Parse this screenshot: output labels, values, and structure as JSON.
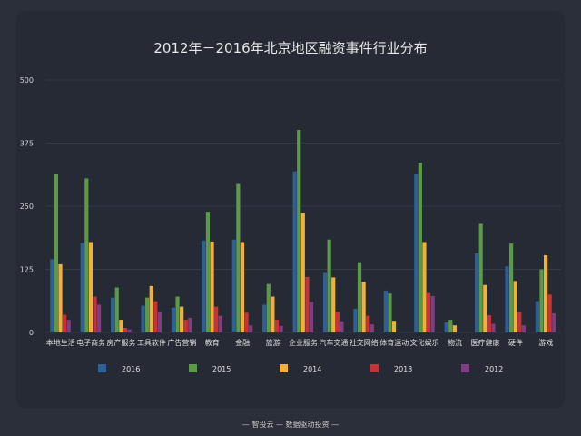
{
  "chart_data": {
    "type": "bar",
    "title": "2012年－2016年北京地区融资事件行业分布",
    "xlabel": "",
    "ylabel": "",
    "ylim": [
      0,
      500
    ],
    "yticks": [
      0,
      125,
      250,
      375,
      500
    ],
    "grid": true,
    "legend": "bottom",
    "categories": [
      "本地生活",
      "电子商务",
      "房产服务",
      "工具软件",
      "广告营销",
      "教育",
      "金融",
      "旅游",
      "企业服务",
      "汽车交通",
      "社交网络",
      "体育运动",
      "文化娱乐",
      "物流",
      "医疗健康",
      "硬件",
      "游戏"
    ],
    "series": [
      {
        "name": "2016",
        "color": "#2e5f95",
        "values": [
          145,
          177,
          69,
          53,
          49,
          182,
          184,
          55,
          319,
          118,
          47,
          83,
          313,
          20,
          157,
          131,
          62
        ]
      },
      {
        "name": "2015",
        "color": "#5a9a48",
        "values": [
          313,
          305,
          89,
          69,
          71,
          239,
          294,
          96,
          401,
          184,
          139,
          77,
          336,
          25,
          215,
          176,
          125
        ]
      },
      {
        "name": "2014",
        "color": "#f0b03a",
        "values": [
          135,
          179,
          25,
          92,
          51,
          180,
          179,
          71,
          236,
          109,
          100,
          23,
          179,
          14,
          94,
          102,
          153
        ]
      },
      {
        "name": "2013",
        "color": "#c8323a",
        "values": [
          35,
          71,
          9,
          62,
          25,
          51,
          39,
          25,
          110,
          41,
          33,
          0,
          78,
          0,
          34,
          40,
          75
        ]
      },
      {
        "name": "2012",
        "color": "#7b3f82",
        "values": [
          25,
          55,
          6,
          40,
          29,
          33,
          14,
          13,
          60,
          22,
          16,
          0,
          72,
          0,
          17,
          14,
          38
        ]
      }
    ]
  },
  "footer": "— 智投云 — 数据驱动投资 —"
}
